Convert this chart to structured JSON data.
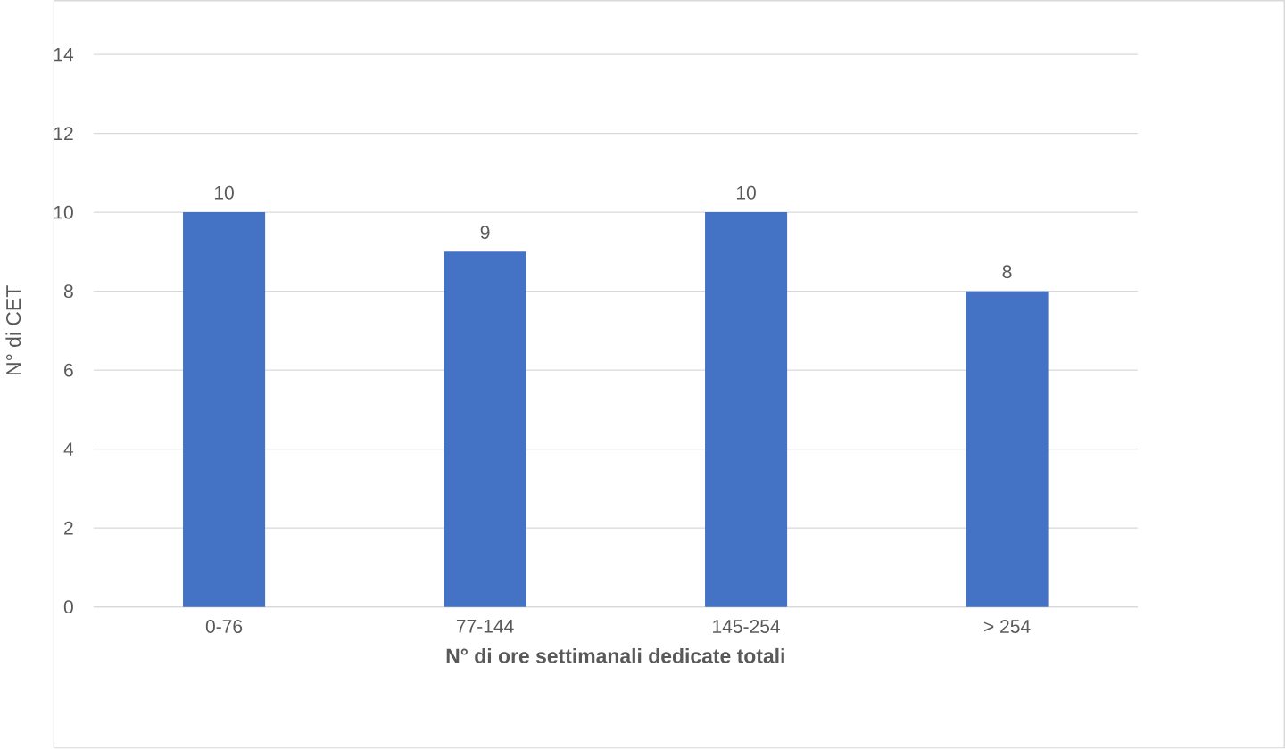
{
  "chart_data": {
    "type": "bar",
    "xlabel": "N° di ore settimanali dedicate totali",
    "ylabel": "N° di CET",
    "categories": [
      "0-76",
      "77-144",
      "145-254",
      "> 254"
    ],
    "values": [
      10,
      9,
      10,
      8
    ],
    "color": "#4472c4",
    "ylim": [
      0,
      14
    ],
    "yticks": [
      0,
      2,
      4,
      6,
      8,
      10,
      12,
      14
    ],
    "grid": "y",
    "data_labels": true
  }
}
